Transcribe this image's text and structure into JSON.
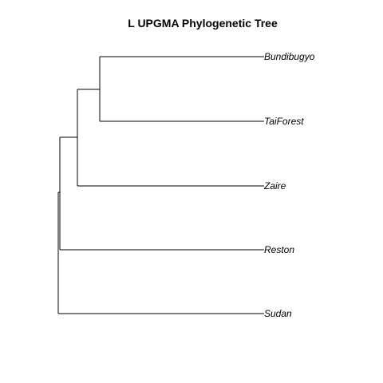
{
  "title": "L UPGMA Phylogenetic Tree",
  "tree": {
    "method": "UPGMA",
    "newick": "((((Bundibugyo,TaiForest),Zaire),Reston),Sudan);",
    "leaves": [
      "Bundibugyo",
      "TaiForest",
      "Zaire",
      "Reston",
      "Sudan"
    ],
    "colors": {
      "line": "#000000",
      "text": "#000000"
    }
  }
}
